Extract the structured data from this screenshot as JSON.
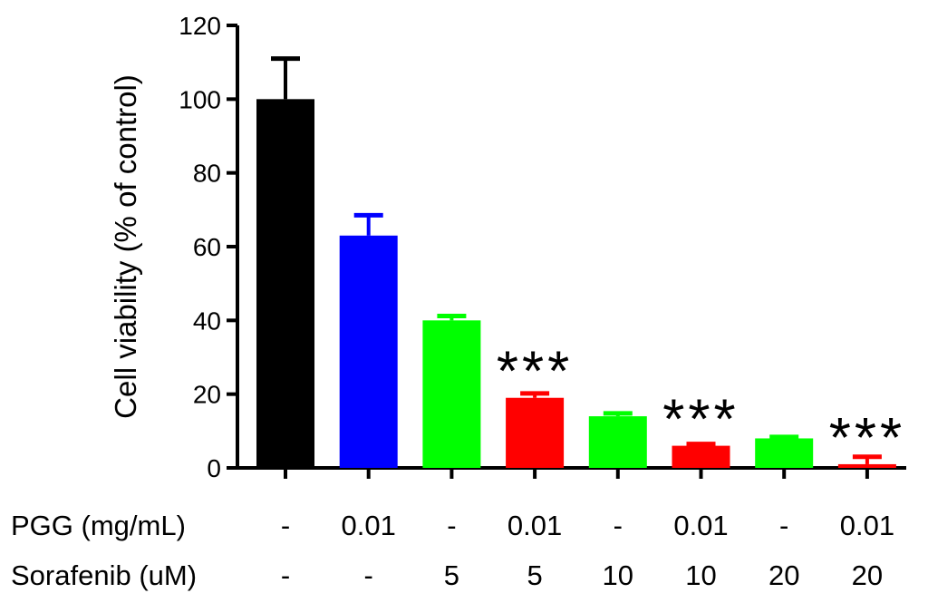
{
  "chart_data": {
    "type": "bar",
    "ylabel": "Cell viability (% of control)",
    "ylim": [
      0,
      120
    ],
    "yticks": [
      "0",
      "20",
      "40",
      "60",
      "80",
      "100",
      "120"
    ],
    "grid": false,
    "legend": "none",
    "bars": [
      {
        "value": 100,
        "error": 11,
        "color": "#000000",
        "pgg": "-",
        "sorafenib": "-",
        "annotation": ""
      },
      {
        "value": 63,
        "error": 5.5,
        "color": "#0000ff",
        "pgg": "0.01",
        "sorafenib": "-",
        "annotation": ""
      },
      {
        "value": 40,
        "error": 1.2,
        "color": "#00ff00",
        "pgg": "-",
        "sorafenib": "5",
        "annotation": ""
      },
      {
        "value": 19,
        "error": 1.2,
        "color": "#ff0000",
        "pgg": "0.01",
        "sorafenib": "5",
        "annotation": "***"
      },
      {
        "value": 14,
        "error": 0.8,
        "color": "#00ff00",
        "pgg": "-",
        "sorafenib": "10",
        "annotation": ""
      },
      {
        "value": 6,
        "error": 0.5,
        "color": "#ff0000",
        "pgg": "0.01",
        "sorafenib": "10",
        "annotation": "***"
      },
      {
        "value": 8,
        "error": 0.4,
        "color": "#00ff00",
        "pgg": "-",
        "sorafenib": "20",
        "annotation": ""
      },
      {
        "value": 1,
        "error": 2,
        "color": "#ff0000",
        "pgg": "0.01",
        "sorafenib": "20",
        "annotation": "***"
      }
    ],
    "row_labels": {
      "pgg": "PGG (mg/mL)",
      "sorafenib": "Sorafenib (uM)"
    }
  }
}
